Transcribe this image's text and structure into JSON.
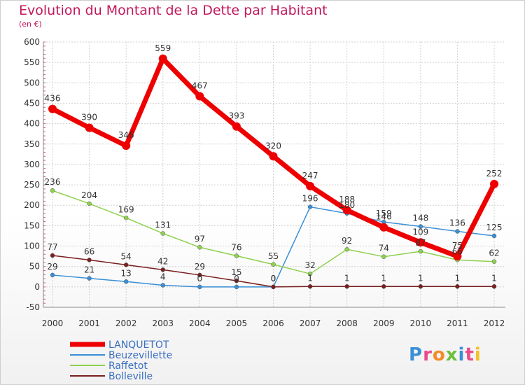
{
  "title": "Evolution du Montant de la Dette par Habitant",
  "subtitle": "(en €)",
  "logo": {
    "text": "Proxiti",
    "colors": [
      "#3a8fd6",
      "#e84a8a",
      "#f28c28",
      "#6cbf3a",
      "#3a8fd6",
      "#e84a8a",
      "#f2c028"
    ]
  },
  "chart_data": {
    "type": "line",
    "x": [
      "2000",
      "2001",
      "2002",
      "2003",
      "2004",
      "2005",
      "2006",
      "2007",
      "2008",
      "2009",
      "2010",
      "2011",
      "2012"
    ],
    "ylim": [
      -50,
      600
    ],
    "yticks": [
      -50,
      0,
      50,
      100,
      150,
      200,
      250,
      300,
      350,
      400,
      450,
      500,
      550,
      600
    ],
    "grid": true,
    "legend_position": "bottom-left",
    "series": [
      {
        "name": "LANQUETOT",
        "color": "#ee0000",
        "width": 7,
        "radius": 6,
        "values": [
          436,
          390,
          346,
          559,
          467,
          393,
          320,
          247,
          188,
          146,
          109,
          75,
          252
        ],
        "labels": [
          "436",
          "390",
          "346",
          "559",
          "467",
          "393",
          "320",
          "247",
          "188",
          "146",
          "109",
          "75",
          "252"
        ]
      },
      {
        "name": "Beuzevillette",
        "color": "#3a8fd6",
        "width": 1.5,
        "radius": 3,
        "values": [
          29,
          21,
          13,
          4,
          0,
          0,
          0,
          196,
          180,
          159,
          148,
          136,
          125
        ],
        "labels": [
          "29",
          "21",
          "13",
          "4",
          "0",
          "0",
          "0",
          "196",
          "180",
          "159",
          "148",
          "136",
          "125"
        ]
      },
      {
        "name": "Raffetot",
        "color": "#8fd14f",
        "width": 1.5,
        "radius": 3,
        "values": [
          236,
          204,
          169,
          131,
          97,
          76,
          55,
          32,
          92,
          74,
          87,
          66,
          62
        ],
        "labels": [
          "236",
          "204",
          "169",
          "131",
          "97",
          "76",
          "55",
          "32",
          "92",
          "74",
          "87",
          "66",
          "62"
        ]
      },
      {
        "name": "Bolleville",
        "color": "#7a1f1f",
        "width": 1.5,
        "radius": 3,
        "values": [
          77,
          66,
          54,
          42,
          29,
          15,
          0,
          1,
          1,
          1,
          1,
          1,
          1
        ],
        "labels": [
          "77",
          "66",
          "54",
          "42",
          "29",
          "15",
          "0",
          "1",
          "1",
          "1",
          "1",
          "1",
          "1"
        ]
      }
    ]
  }
}
